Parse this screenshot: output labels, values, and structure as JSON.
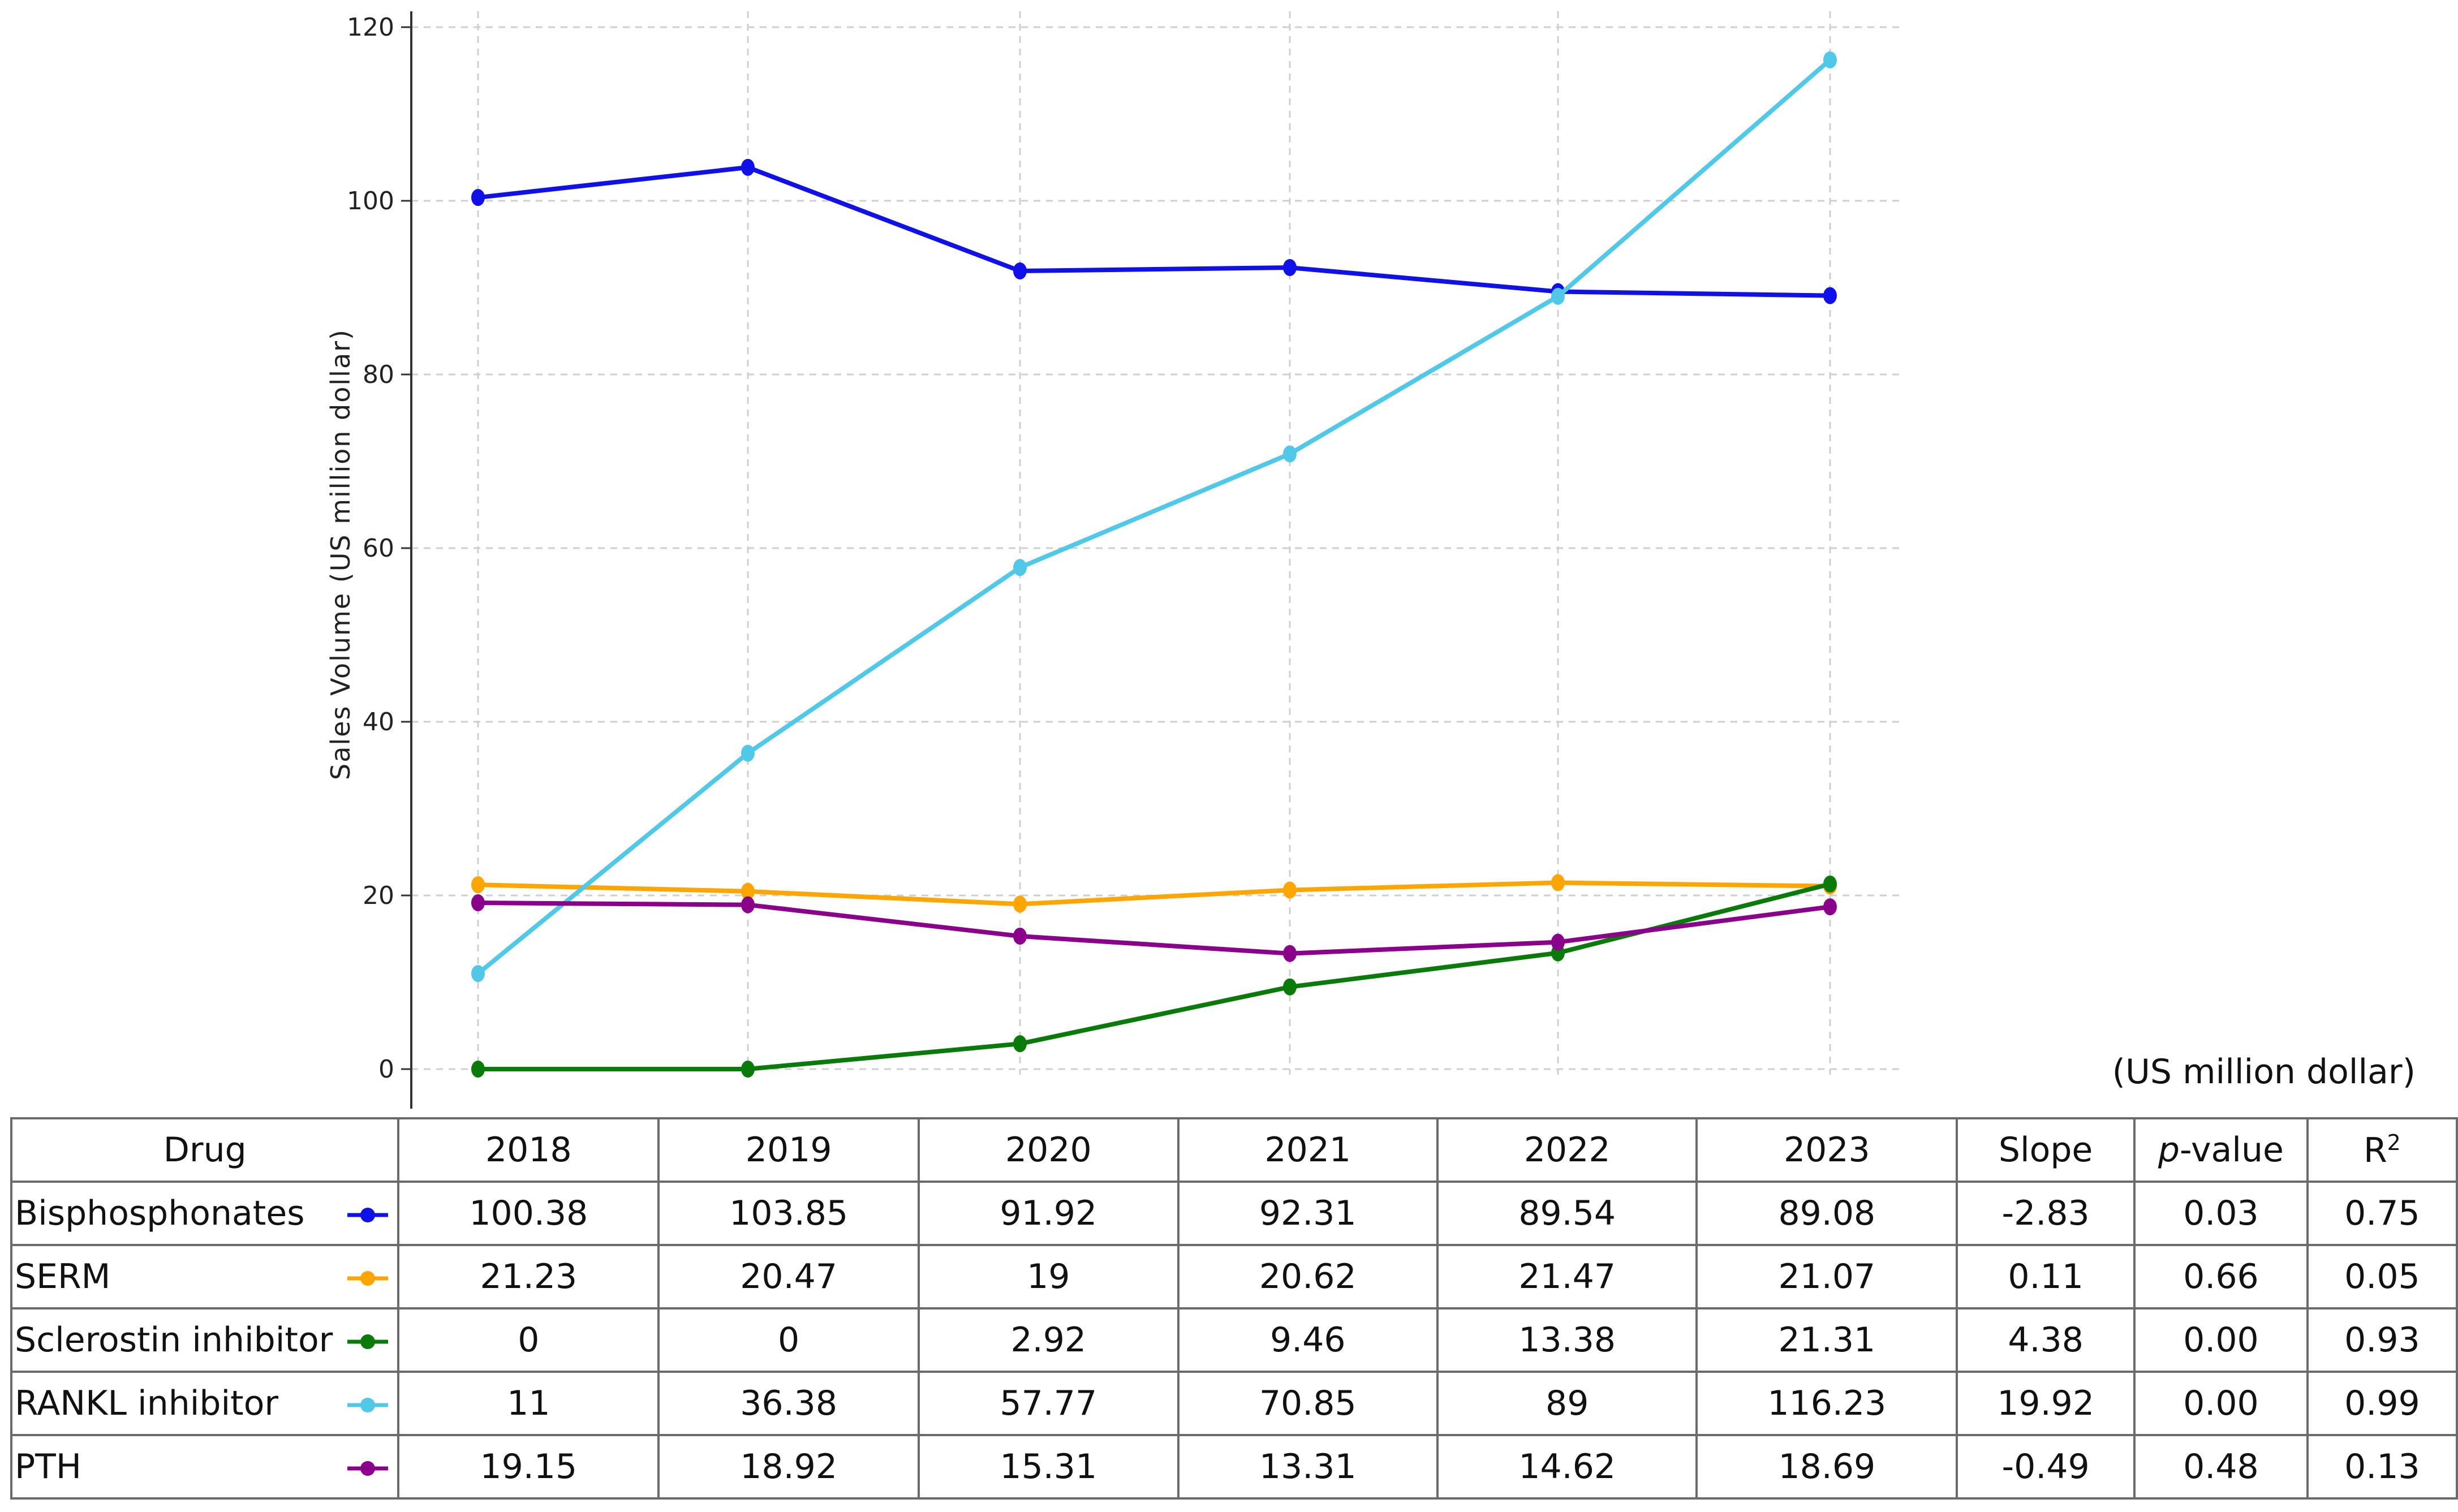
{
  "chart_data": {
    "type": "line",
    "ylabel": "Sales Volume (US million dollar)",
    "xlabel": "",
    "categories": [
      "2018",
      "2019",
      "2020",
      "2021",
      "2022",
      "2023"
    ],
    "ylim": [
      -5,
      122
    ],
    "yticks": [
      0,
      20,
      40,
      60,
      80,
      100,
      120
    ],
    "grid": true,
    "grid_style": "dashed",
    "series": [
      {
        "name": "Bisphosphonates",
        "color": "#1010e8",
        "values": [
          100.38,
          103.85,
          91.92,
          92.31,
          89.54,
          89.08
        ]
      },
      {
        "name": "SERM",
        "color": "#ffa500",
        "values": [
          21.23,
          20.47,
          19,
          20.62,
          21.47,
          21.07
        ]
      },
      {
        "name": "Sclerostin inhibitor",
        "color": "#0a7a0a",
        "values": [
          0,
          0,
          2.92,
          9.46,
          13.38,
          21.31
        ]
      },
      {
        "name": "RANKL inhibitor",
        "color": "#52c8e8",
        "values": [
          11,
          36.38,
          57.77,
          70.85,
          89,
          116.23
        ]
      },
      {
        "name": "PTH",
        "color": "#8b008b",
        "values": [
          19.15,
          18.92,
          15.31,
          13.31,
          14.62,
          18.69
        ]
      }
    ]
  },
  "unit_note": "(US million dollar)",
  "table": {
    "headers": {
      "drug": "Drug",
      "years": [
        "2018",
        "2019",
        "2020",
        "2021",
        "2022",
        "2023"
      ],
      "slope": "Slope",
      "p_italic": "p",
      "p_rest": "-value",
      "r2_base": "R",
      "r2_sup": "2"
    },
    "rows": [
      {
        "drug": "Bisphosphonates",
        "values": [
          "100.38",
          "103.85",
          "91.92",
          "92.31",
          "89.54",
          "89.08"
        ],
        "slope": "-2.83",
        "p": "0.03",
        "r2": "0.75"
      },
      {
        "drug": "SERM",
        "values": [
          "21.23",
          "20.47",
          "19",
          "20.62",
          "21.47",
          "21.07"
        ],
        "slope": "0.11",
        "p": "0.66",
        "r2": "0.05"
      },
      {
        "drug": "Sclerostin inhibitor",
        "values": [
          "0",
          "0",
          "2.92",
          "9.46",
          "13.38",
          "21.31"
        ],
        "slope": "4.38",
        "p": "0.00",
        "r2": "0.93"
      },
      {
        "drug": "RANKL inhibitor",
        "values": [
          "11",
          "36.38",
          "57.77",
          "70.85",
          "89",
          "116.23"
        ],
        "slope": "19.92",
        "p": "0.00",
        "r2": "0.99"
      },
      {
        "drug": "PTH",
        "values": [
          "19.15",
          "18.92",
          "15.31",
          "13.31",
          "14.62",
          "18.69"
        ],
        "slope": "-0.49",
        "p": "0.48",
        "r2": "0.13"
      }
    ]
  }
}
